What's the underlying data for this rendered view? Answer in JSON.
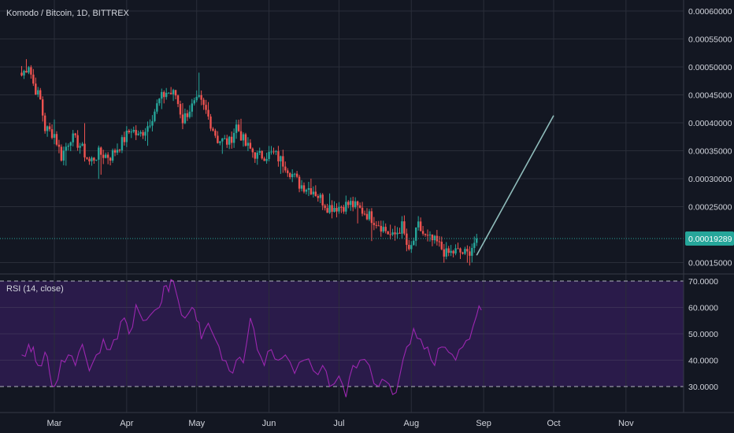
{
  "title": "Komodo / Bitcoin, 1D, BITTREX",
  "colors": {
    "background": "#131722",
    "grid": "#2a2e39",
    "up": "#26a69a",
    "down": "#ef5350",
    "projection": "#8fbcbb",
    "price_line": "#26a69a",
    "price_badge": "#26a69a",
    "rsi": "#9c27b0",
    "rsi_band": "#2a1b4a",
    "text": "#d1d4dc"
  },
  "chart_data": [
    {
      "type": "candlestick",
      "title": "Komodo / Bitcoin, 1D, BITTREX",
      "x_tick_labels": [
        "Mar",
        "Apr",
        "May",
        "Jun",
        "Jul",
        "Aug",
        "Sep",
        "Oct",
        "Nov"
      ],
      "y_tick_labels": [
        "0.00060000",
        "0.00055000",
        "0.00050000",
        "0.00045000",
        "0.00040000",
        "0.00035000",
        "0.00030000",
        "0.00025000",
        "0.00015000"
      ],
      "ylim": [
        0.00012,
        0.00062
      ],
      "last_price": 0.00019289,
      "last_price_label": "0.00019289",
      "grid": true,
      "close_path": [
        [
          "Feb 15",
          0.000485
        ],
        [
          "Feb 18",
          0.000505
        ],
        [
          "Feb 20",
          0.00047
        ],
        [
          "Feb 23",
          0.00044
        ],
        [
          "Feb 25",
          0.00039
        ],
        [
          "Mar 1",
          0.00038
        ],
        [
          "Mar 4",
          0.00034
        ],
        [
          "Mar 8",
          0.000375
        ],
        [
          "Mar 12",
          0.00036
        ],
        [
          "Mar 16",
          0.00033
        ],
        [
          "Mar 20",
          0.000345
        ],
        [
          "Mar 25",
          0.00034
        ],
        [
          "Mar 30",
          0.000365
        ],
        [
          "Apr 3",
          0.00039
        ],
        [
          "Apr 6",
          0.000375
        ],
        [
          "Apr 10",
          0.000395
        ],
        [
          "Apr 15",
          0.00044
        ],
        [
          "Apr 18",
          0.000455
        ],
        [
          "Apr 22",
          0.00045
        ],
        [
          "Apr 25",
          0.000405
        ],
        [
          "Apr 28",
          0.000425
        ],
        [
          "May 2",
          0.00044
        ],
        [
          "May 5",
          0.00042
        ],
        [
          "May 10",
          0.00037
        ],
        [
          "May 15",
          0.000365
        ],
        [
          "May 18",
          0.000395
        ],
        [
          "May 22",
          0.00036
        ],
        [
          "May 27",
          0.00034
        ],
        [
          "Jun 3",
          0.000345
        ],
        [
          "Jun 8",
          0.000325
        ],
        [
          "Jun 14",
          0.00029
        ],
        [
          "Jun 20",
          0.00028
        ],
        [
          "Jun 26",
          0.00025
        ],
        [
          "Jul 1",
          0.00025
        ],
        [
          "Jul 6",
          0.000255
        ],
        [
          "Jul 12",
          0.00024
        ],
        [
          "Jul 18",
          0.00022
        ],
        [
          "Jul 24",
          0.000195
        ],
        [
          "Jul 28",
          0.000215
        ],
        [
          "Jul 31",
          0.000165
        ],
        [
          "Aug 4",
          0.000215
        ],
        [
          "Aug 7",
          0.000195
        ],
        [
          "Aug 12",
          0.000185
        ],
        [
          "Aug 16",
          0.000165
        ],
        [
          "Aug 20",
          0.00017
        ],
        [
          "Aug 25",
          0.000165
        ],
        [
          "Aug 29",
          0.000193
        ]
      ],
      "projection": [
        [
          "Aug 29",
          0.000163
        ],
        [
          "Oct 1",
          0.000413
        ]
      ]
    },
    {
      "type": "line",
      "legend": "RSI (14, close)",
      "y_tick_labels": [
        "70.0000",
        "60.0000",
        "50.0000",
        "40.0000",
        "30.0000"
      ],
      "ylim": [
        20,
        70
      ],
      "bands": [
        30,
        70
      ],
      "series": [
        [
          "Feb 15",
          42
        ],
        [
          "Feb 18",
          46
        ],
        [
          "Feb 20",
          45
        ],
        [
          "Feb 22",
          38
        ],
        [
          "Feb 25",
          43
        ],
        [
          "Feb 27",
          35
        ],
        [
          "Mar 1",
          30
        ],
        [
          "Mar 4",
          40
        ],
        [
          "Mar 7",
          42
        ],
        [
          "Mar 10",
          38
        ],
        [
          "Mar 13",
          46
        ],
        [
          "Mar 16",
          36
        ],
        [
          "Mar 19",
          42
        ],
        [
          "Mar 22",
          48
        ],
        [
          "Mar 25",
          44
        ],
        [
          "Mar 28",
          48
        ],
        [
          "Mar 31",
          56
        ],
        [
          "Apr 2",
          50
        ],
        [
          "Apr 5",
          61
        ],
        [
          "Apr 8",
          55
        ],
        [
          "Apr 11",
          57
        ],
        [
          "Apr 15",
          60
        ],
        [
          "Apr 17",
          68
        ],
        [
          "Apr 19",
          66
        ],
        [
          "Apr 21",
          70
        ],
        [
          "Apr 23",
          63
        ],
        [
          "Apr 26",
          56
        ],
        [
          "Apr 29",
          60
        ],
        [
          "May 1",
          55
        ],
        [
          "May 3",
          48
        ],
        [
          "May 6",
          54
        ],
        [
          "May 9",
          48
        ],
        [
          "May 12",
          40
        ],
        [
          "May 15",
          36
        ],
        [
          "May 18",
          40
        ],
        [
          "May 21",
          39
        ],
        [
          "May 24",
          56
        ],
        [
          "May 27",
          44
        ],
        [
          "May 30",
          38
        ],
        [
          "Jun 2",
          44
        ],
        [
          "Jun 5",
          40
        ],
        [
          "Jun 8",
          42
        ],
        [
          "Jun 12",
          35
        ],
        [
          "Jun 16",
          40
        ],
        [
          "Jun 20",
          36
        ],
        [
          "Jun 24",
          38
        ],
        [
          "Jun 27",
          30
        ],
        [
          "Jul 1",
          34
        ],
        [
          "Jul 4",
          26
        ],
        [
          "Jul 7",
          38
        ],
        [
          "Jul 10",
          40
        ],
        [
          "Jul 14",
          38
        ],
        [
          "Jul 18",
          30
        ],
        [
          "Jul 21",
          32
        ],
        [
          "Jul 24",
          27
        ],
        [
          "Jul 27",
          34
        ],
        [
          "Jul 30",
          45
        ],
        [
          "Aug 2",
          52
        ],
        [
          "Aug 5",
          48
        ],
        [
          "Aug 8",
          45
        ],
        [
          "Aug 11",
          38
        ],
        [
          "Aug 14",
          45
        ],
        [
          "Aug 17",
          43
        ],
        [
          "Aug 20",
          40
        ],
        [
          "Aug 23",
          45
        ],
        [
          "Aug 26",
          48
        ],
        [
          "Aug 29",
          57
        ],
        [
          "Aug 31",
          59
        ]
      ]
    }
  ]
}
